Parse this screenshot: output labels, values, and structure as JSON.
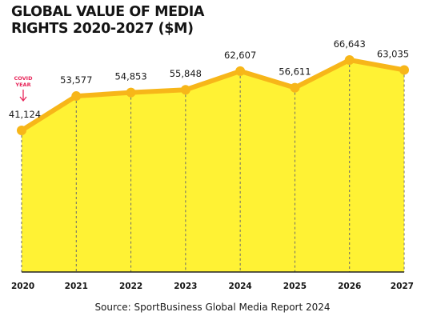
{
  "title_line1": "GLOBAL VALUE OF MEDIA",
  "title_line2": "RIGHTS 2020-2027 ($M)",
  "annotation": {
    "line1": "COVID",
    "line2": "YEAR",
    "color": "#e8265a"
  },
  "source": "Source: SportBusiness Global Media Report 2024",
  "colors": {
    "fill": "#fff234",
    "line": "#f7b619",
    "dash": "#6b6b6b",
    "text": "#1a1a1a"
  },
  "chart_data": {
    "type": "area",
    "categories": [
      "2020",
      "2021",
      "2022",
      "2023",
      "2024",
      "2025",
      "2026",
      "2027"
    ],
    "values": [
      41124,
      53577,
      54853,
      55848,
      62607,
      56611,
      66643,
      63035
    ],
    "labels": [
      "41,124",
      "53,577",
      "54,853",
      "55,848",
      "62,607",
      "56,611",
      "66,643",
      "63,035"
    ],
    "title": "GLOBAL VALUE OF MEDIA RIGHTS 2020-2027 ($M)",
    "ylim": [
      0,
      70000
    ],
    "grid": false,
    "legend": "none"
  }
}
